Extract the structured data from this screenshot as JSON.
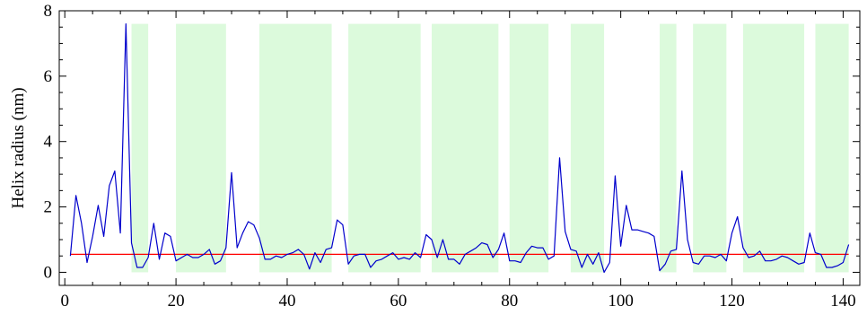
{
  "chart_data": {
    "type": "line",
    "title": "",
    "xlabel": "",
    "ylabel": "Helix radius (nm)",
    "xlim": [
      -1,
      143
    ],
    "ylim": [
      -0.4,
      8.0
    ],
    "xticks": [
      0,
      20,
      40,
      60,
      80,
      100,
      120,
      140
    ],
    "yticks": [
      0,
      2,
      4,
      6,
      8
    ],
    "grid": false,
    "legend": "none",
    "colors": {
      "line": "#0000cc",
      "threshold": "#ff0000",
      "band": "#dcfadc"
    },
    "threshold": 0.55,
    "shaded_x_ranges": [
      [
        12,
        15
      ],
      [
        20,
        29
      ],
      [
        35,
        48
      ],
      [
        51,
        64
      ],
      [
        66,
        78
      ],
      [
        80,
        87
      ],
      [
        91,
        97
      ],
      [
        107,
        110
      ],
      [
        113,
        119
      ],
      [
        122,
        133
      ],
      [
        135,
        141
      ]
    ],
    "series": [
      {
        "x": [
          1,
          2,
          3,
          4,
          5,
          6,
          7,
          8,
          9,
          10,
          11,
          12,
          13,
          14,
          15,
          16,
          17,
          18,
          19,
          20,
          21,
          22,
          23,
          24,
          25,
          26,
          27,
          28,
          29,
          30,
          31,
          32,
          33,
          34,
          35,
          36,
          37,
          38,
          39,
          40,
          41,
          42,
          43,
          44,
          45,
          46,
          47,
          48,
          49,
          50,
          51,
          52,
          53,
          54,
          55,
          56,
          57,
          58,
          59,
          60,
          61,
          62,
          63,
          64,
          65,
          66,
          67,
          68,
          69,
          70,
          71,
          72,
          73,
          74,
          75,
          76,
          77,
          78,
          79,
          80,
          81,
          82,
          83,
          84,
          85,
          86,
          87,
          88,
          89,
          90,
          91,
          92,
          93,
          94,
          95,
          96,
          97,
          98,
          99,
          100,
          101,
          102,
          103,
          104,
          105,
          106,
          107,
          108,
          109,
          110,
          111,
          112,
          113,
          114,
          115,
          116,
          117,
          118,
          119,
          120,
          121,
          122,
          123,
          124,
          125,
          126,
          127,
          128,
          129,
          130,
          131,
          132,
          133,
          134,
          135,
          136,
          137,
          138,
          139,
          140,
          141
        ],
        "y": [
          0.5,
          2.35,
          1.5,
          0.3,
          1.1,
          2.05,
          1.1,
          2.65,
          3.1,
          1.2,
          7.6,
          0.9,
          0.15,
          0.15,
          0.45,
          1.5,
          0.4,
          1.2,
          1.1,
          0.35,
          0.45,
          0.55,
          0.45,
          0.45,
          0.55,
          0.7,
          0.25,
          0.35,
          0.75,
          3.05,
          0.75,
          1.2,
          1.55,
          1.45,
          1.05,
          0.4,
          0.4,
          0.5,
          0.45,
          0.55,
          0.6,
          0.7,
          0.55,
          0.1,
          0.6,
          0.3,
          0.7,
          0.75,
          1.6,
          1.45,
          0.25,
          0.5,
          0.55,
          0.55,
          0.15,
          0.35,
          0.4,
          0.5,
          0.6,
          0.4,
          0.45,
          0.4,
          0.6,
          0.45,
          1.15,
          1.0,
          0.45,
          1.0,
          0.4,
          0.4,
          0.25,
          0.55,
          0.65,
          0.75,
          0.9,
          0.85,
          0.45,
          0.7,
          1.2,
          0.35,
          0.35,
          0.3,
          0.6,
          0.8,
          0.75,
          0.75,
          0.4,
          0.5,
          3.5,
          1.25,
          0.7,
          0.65,
          0.15,
          0.55,
          0.25,
          0.6,
          0.0,
          0.3,
          2.95,
          0.8,
          2.05,
          1.3,
          1.3,
          1.25,
          1.2,
          1.1,
          0.05,
          0.25,
          0.65,
          0.7,
          3.1,
          1.0,
          0.3,
          0.25,
          0.5,
          0.5,
          0.45,
          0.55,
          0.35,
          1.2,
          1.7,
          0.75,
          0.45,
          0.5,
          0.65,
          0.35,
          0.35,
          0.4,
          0.5,
          0.45,
          0.35,
          0.25,
          0.3,
          1.2,
          0.6,
          0.55,
          0.15,
          0.15,
          0.2,
          0.3,
          0.85
        ]
      }
    ]
  }
}
